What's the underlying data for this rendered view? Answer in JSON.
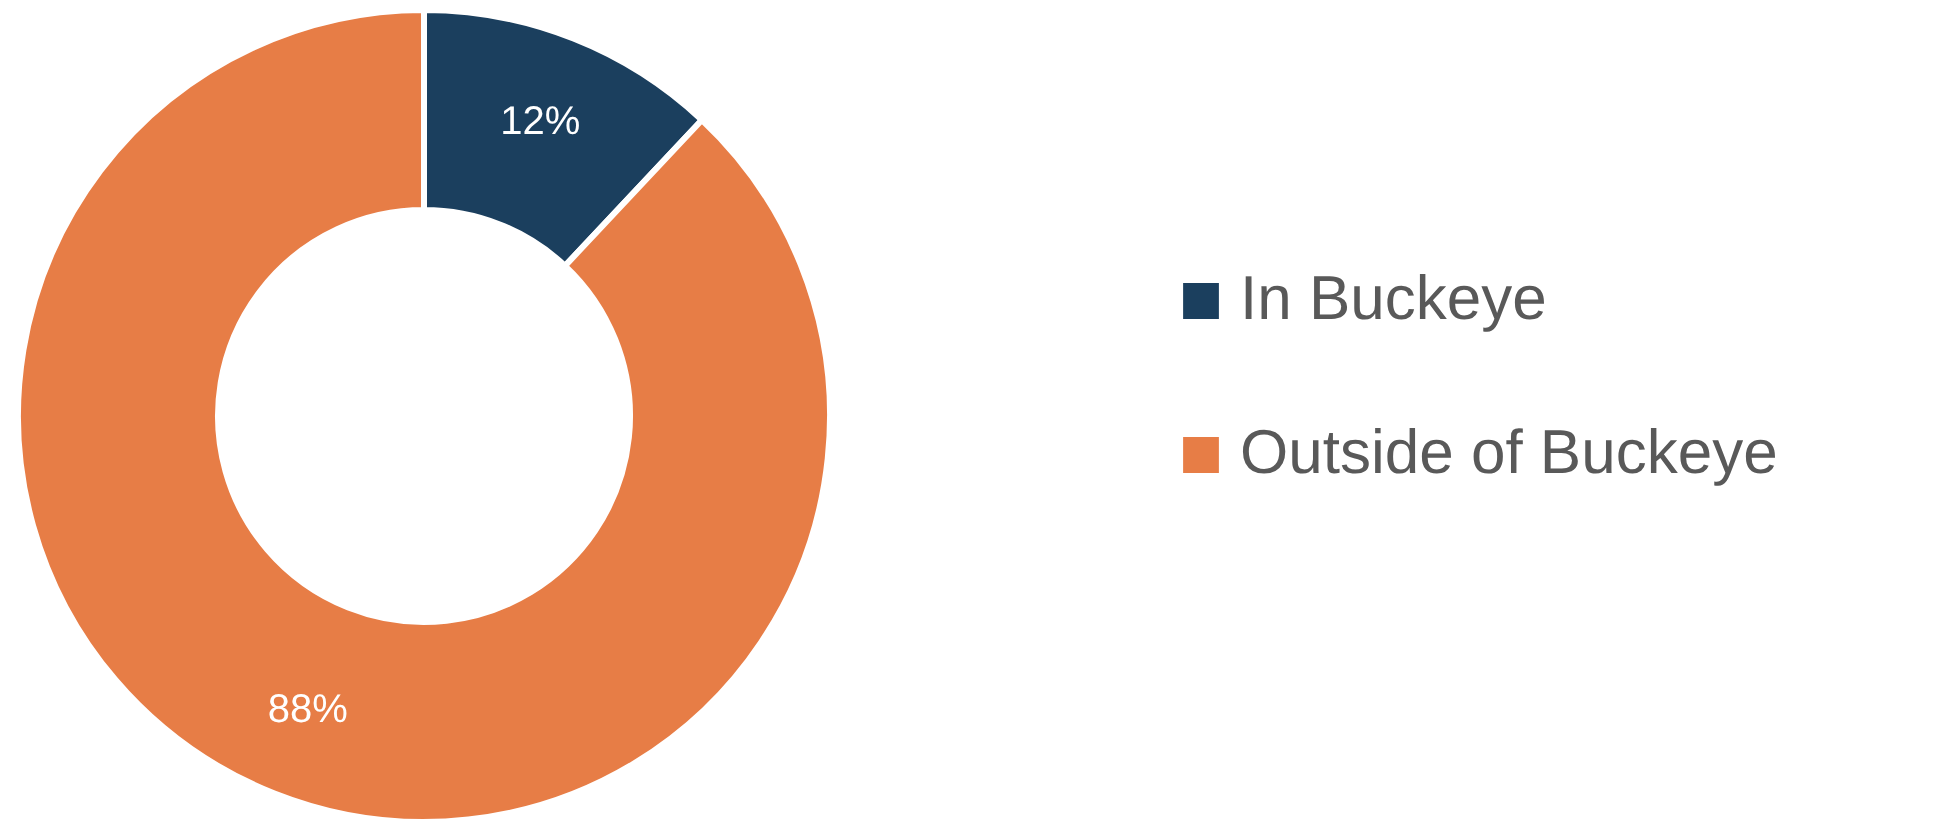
{
  "chart_data": {
    "type": "donut",
    "categories": [
      "In Buckeye",
      "Outside of Buckeye"
    ],
    "values": [
      12,
      88
    ],
    "colors": [
      "#1b3f5e",
      "#e77d46"
    ],
    "value_labels": [
      "12%",
      "88%"
    ],
    "legend": "right"
  }
}
